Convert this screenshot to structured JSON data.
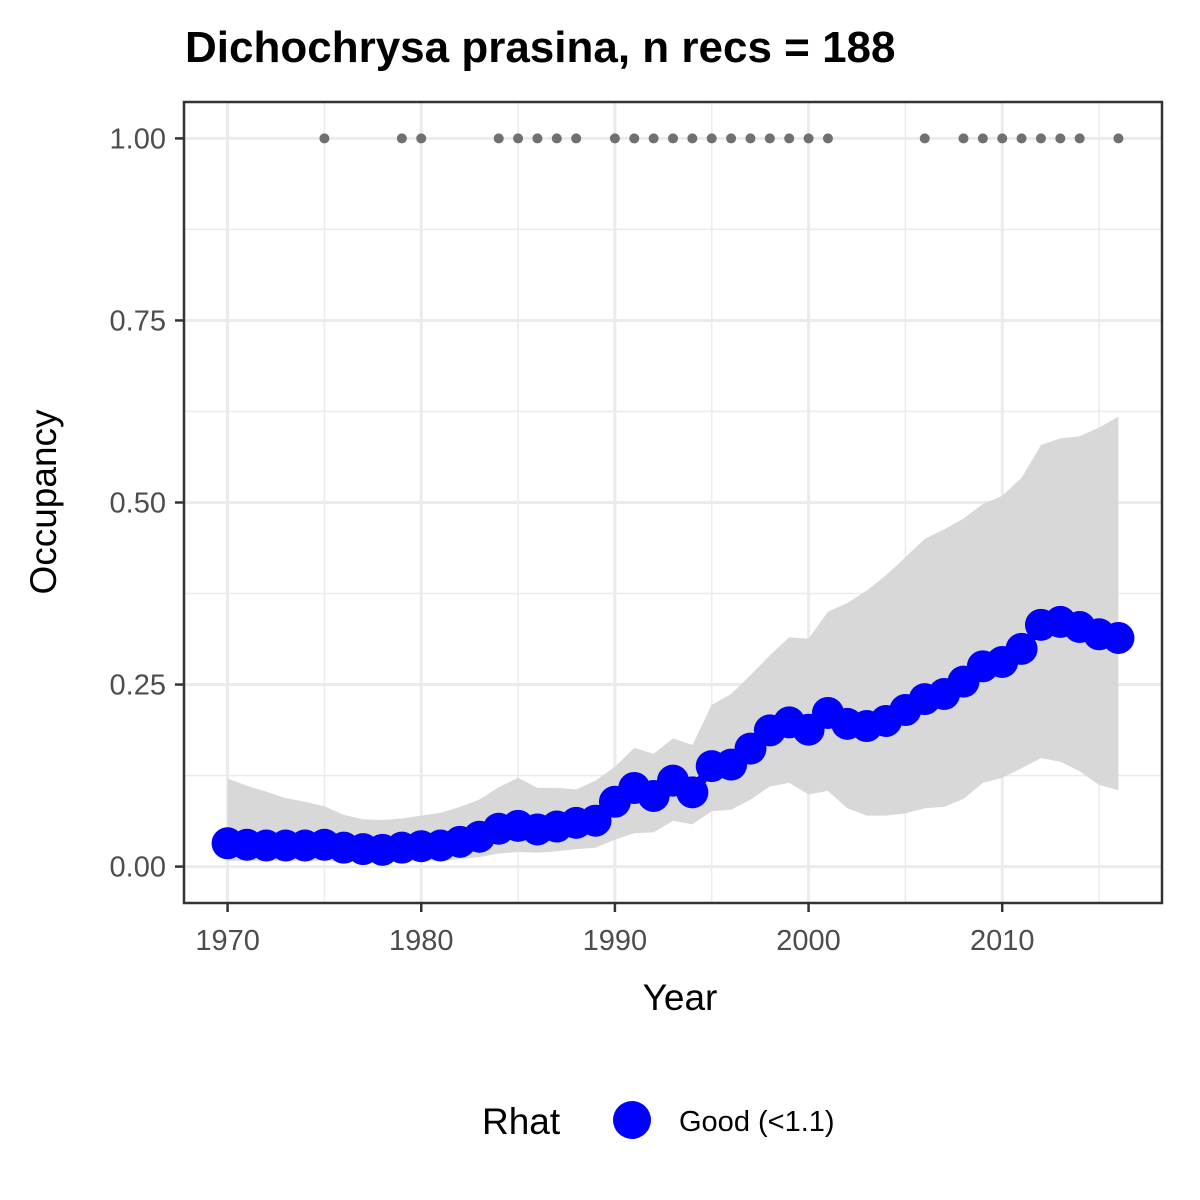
{
  "chart_data": {
    "type": "line",
    "title": "Dichochrysa prasina, n recs = 188",
    "xlabel": "Year",
    "ylabel": "Occupancy",
    "xlim": [
      1967.75,
      2018.25
    ],
    "ylim": [
      -0.05,
      1.05
    ],
    "x_ticks": [
      1970,
      1980,
      1990,
      2000,
      2010
    ],
    "x_tick_labels": [
      "1970",
      "1980",
      "1990",
      "2000",
      "2010"
    ],
    "x_minor_ticks": [
      1975,
      1985,
      1995,
      2005,
      2015
    ],
    "y_ticks": [
      0,
      0.25,
      0.5,
      0.75,
      1
    ],
    "y_tick_labels": [
      "0.00",
      "0.25",
      "0.50",
      "0.75",
      "1.00"
    ],
    "y_minor_ticks": [
      0.125,
      0.375,
      0.625,
      0.875
    ],
    "grid": true,
    "colors": {
      "series": "#0000ff",
      "ribbon": "#d6d6d6",
      "records": "#707070",
      "grid": "#ebebeb",
      "panel_border": "#333333"
    },
    "series": [
      {
        "name": "Occupancy",
        "x": [
          1970,
          1971,
          1972,
          1973,
          1974,
          1975,
          1976,
          1977,
          1978,
          1979,
          1980,
          1981,
          1982,
          1983,
          1984,
          1985,
          1986,
          1987,
          1988,
          1989,
          1990,
          1991,
          1992,
          1993,
          1994,
          1995,
          1996,
          1997,
          1998,
          1999,
          2000,
          2001,
          2002,
          2003,
          2004,
          2005,
          2006,
          2007,
          2008,
          2009,
          2010,
          2011,
          2012,
          2013,
          2014,
          2015,
          2016
        ],
        "y": [
          0.032,
          0.03,
          0.029,
          0.029,
          0.029,
          0.03,
          0.026,
          0.024,
          0.023,
          0.026,
          0.028,
          0.029,
          0.034,
          0.041,
          0.052,
          0.056,
          0.051,
          0.055,
          0.06,
          0.063,
          0.089,
          0.108,
          0.097,
          0.118,
          0.102,
          0.138,
          0.14,
          0.162,
          0.187,
          0.198,
          0.188,
          0.211,
          0.196,
          0.193,
          0.2,
          0.215,
          0.23,
          0.237,
          0.254,
          0.275,
          0.281,
          0.299,
          0.332,
          0.336,
          0.329,
          0.319,
          0.314
        ]
      }
    ],
    "ribbon": {
      "x": [
        1970,
        1971,
        1972,
        1973,
        1974,
        1975,
        1976,
        1977,
        1978,
        1979,
        1980,
        1981,
        1982,
        1983,
        1984,
        1985,
        1986,
        1987,
        1988,
        1989,
        1990,
        1991,
        1992,
        1993,
        1994,
        1995,
        1996,
        1997,
        1998,
        1999,
        2000,
        2001,
        2002,
        2003,
        2004,
        2005,
        2006,
        2007,
        2008,
        2009,
        2010,
        2011,
        2012,
        2013,
        2014,
        2015,
        2016
      ],
      "lower": [
        0.008,
        0.008,
        0.008,
        0.008,
        0.008,
        0.008,
        0.007,
        0.006,
        0.006,
        0.007,
        0.008,
        0.008,
        0.01,
        0.013,
        0.018,
        0.02,
        0.019,
        0.021,
        0.024,
        0.026,
        0.037,
        0.046,
        0.047,
        0.063,
        0.058,
        0.076,
        0.078,
        0.092,
        0.11,
        0.115,
        0.099,
        0.104,
        0.08,
        0.07,
        0.07,
        0.073,
        0.08,
        0.082,
        0.093,
        0.115,
        0.122,
        0.135,
        0.149,
        0.144,
        0.131,
        0.112,
        0.105
      ],
      "upper": [
        0.121,
        0.111,
        0.103,
        0.094,
        0.089,
        0.083,
        0.071,
        0.065,
        0.064,
        0.066,
        0.07,
        0.074,
        0.082,
        0.092,
        0.109,
        0.122,
        0.108,
        0.108,
        0.106,
        0.118,
        0.137,
        0.163,
        0.155,
        0.176,
        0.167,
        0.222,
        0.237,
        0.263,
        0.29,
        0.315,
        0.313,
        0.35,
        0.362,
        0.379,
        0.4,
        0.425,
        0.45,
        0.463,
        0.478,
        0.498,
        0.509,
        0.534,
        0.579,
        0.588,
        0.591,
        0.603,
        0.618
      ]
    },
    "records": {
      "y": 1,
      "x": [
        1975,
        1979,
        1980,
        1984,
        1985,
        1986,
        1987,
        1988,
        1990,
        1991,
        1992,
        1993,
        1994,
        1995,
        1996,
        1997,
        1998,
        1999,
        2000,
        2001,
        2006,
        2008,
        2009,
        2010,
        2011,
        2012,
        2013,
        2014,
        2016
      ]
    },
    "legend": {
      "title": "Rhat",
      "entries": [
        {
          "label": "Good (<1.1)",
          "color": "#0000ff"
        }
      ],
      "position": "bottom"
    }
  }
}
